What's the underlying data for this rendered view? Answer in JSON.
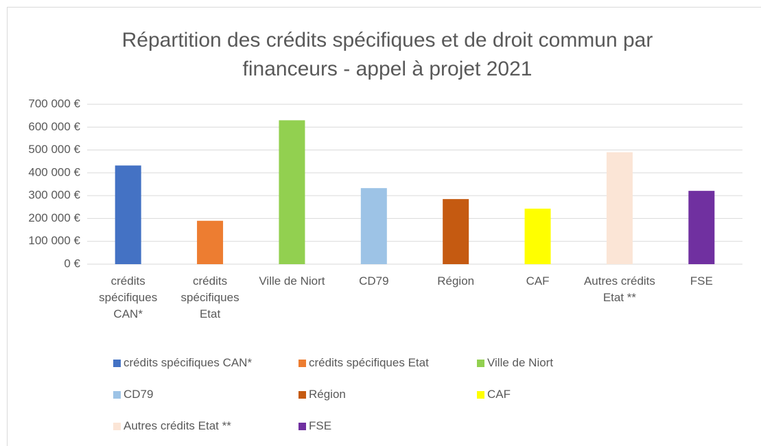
{
  "chart_data": {
    "type": "bar",
    "title": "Répartition des crédits spécifiques et de droit commun par financeurs - appel à projet 2021",
    "categories": [
      "crédits spécifiques CAN*",
      "crédits spécifiques Etat",
      "Ville de Niort",
      "CD79",
      "Région",
      "CAF",
      "Autres crédits Etat **",
      "FSE"
    ],
    "values": [
      432000,
      190000,
      630000,
      333000,
      285000,
      243000,
      490000,
      321000
    ],
    "colors": [
      "#4472c4",
      "#ed7d31",
      "#92d050",
      "#9dc3e6",
      "#c55a11",
      "#ffff00",
      "#fbe5d6",
      "#7030a0"
    ],
    "ylim": [
      0,
      700000
    ],
    "yticks": [
      {
        "value": 0,
        "label": "0 €"
      },
      {
        "value": 100000,
        "label": "100 000 €"
      },
      {
        "value": 200000,
        "label": "200 000 €"
      },
      {
        "value": 300000,
        "label": "300 000 €"
      },
      {
        "value": 400000,
        "label": "400 000 €"
      },
      {
        "value": 500000,
        "label": "500 000 €"
      },
      {
        "value": 600000,
        "label": "600 000 €"
      },
      {
        "value": 700000,
        "label": "700 000 €"
      }
    ],
    "grid": true,
    "legend": "bottom"
  }
}
